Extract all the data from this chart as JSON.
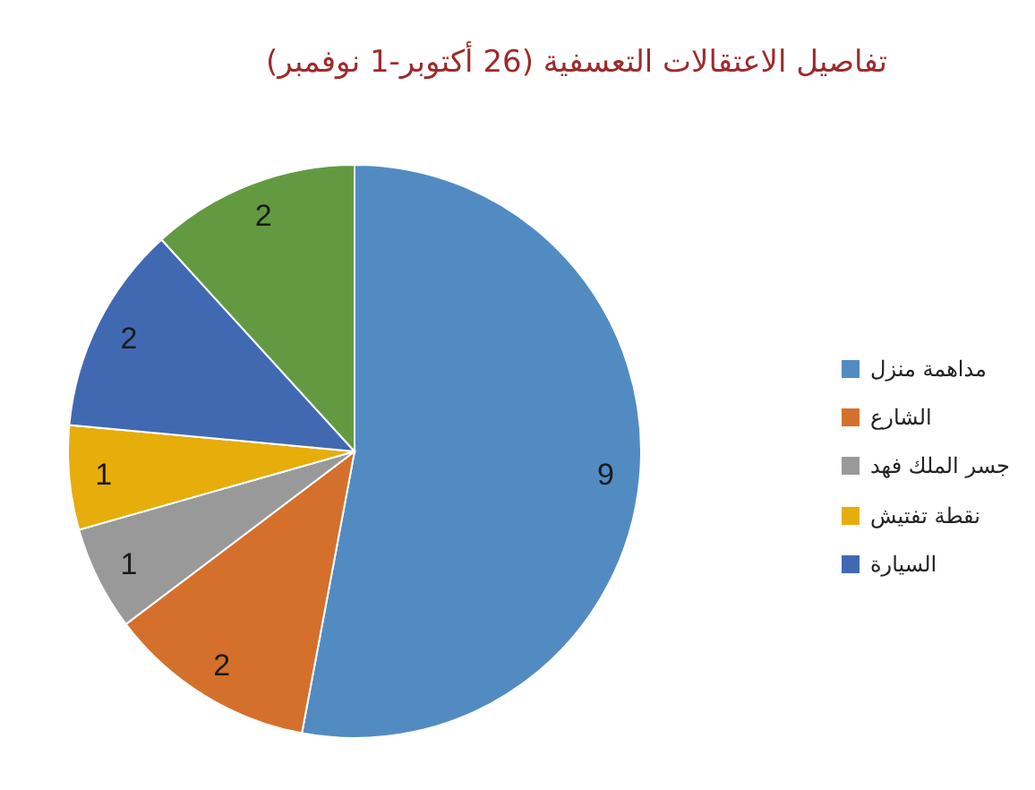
{
  "chart_data": {
    "type": "pie",
    "title": "تفاصيل الاعتقالات التعسفية (26 أكتوبر-1 نوفمبر)",
    "categories": [
      "مداهمة منزل",
      "الشارع",
      "جسر الملك فهد",
      "نقطة تفتيش",
      "السيارة",
      null
    ],
    "values": [
      9,
      2,
      1,
      1,
      2,
      2
    ],
    "colors": [
      "#528bc2",
      "#d4702c",
      "#999999",
      "#e6ad0b",
      "#4169b2",
      "#639a41"
    ],
    "data_labels": true,
    "legend": "right"
  }
}
